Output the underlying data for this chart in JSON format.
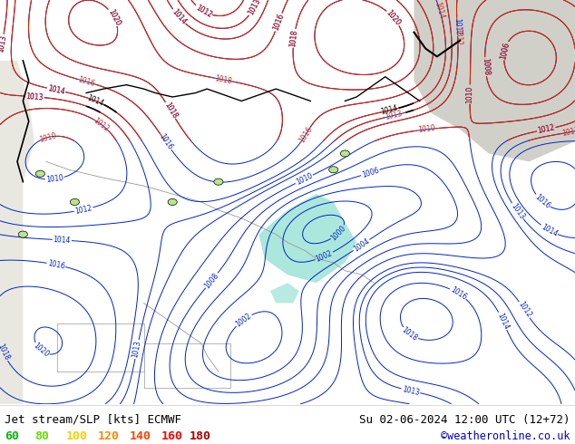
{
  "title_left": "Jet stream/SLP [kts] ECMWF",
  "title_right": "Su 02-06-2024 12:00 UTC (12+72)",
  "credit": "©weatheronline.co.uk",
  "legend_values": [
    "60",
    "80",
    "100",
    "120",
    "140",
    "160",
    "180"
  ],
  "legend_colors": [
    "#00bb00",
    "#66dd00",
    "#ffcc00",
    "#ff8800",
    "#ff4400",
    "#ff0000",
    "#aa0000"
  ],
  "bg_map": "#b8e68c",
  "bg_sea_gray": "#d8d8d0",
  "bg_cyan": "#88ddcc",
  "bg_top_right": "#c8e0d0",
  "title_color": "#000000",
  "credit_color": "#0000cc",
  "bottom_bg": "#ffffff",
  "contour_red": "#dd2200",
  "contour_blue": "#0022cc",
  "contour_black": "#000000",
  "contour_gray": "#888888",
  "fig_width": 6.34,
  "fig_height": 4.9,
  "dpi": 100
}
